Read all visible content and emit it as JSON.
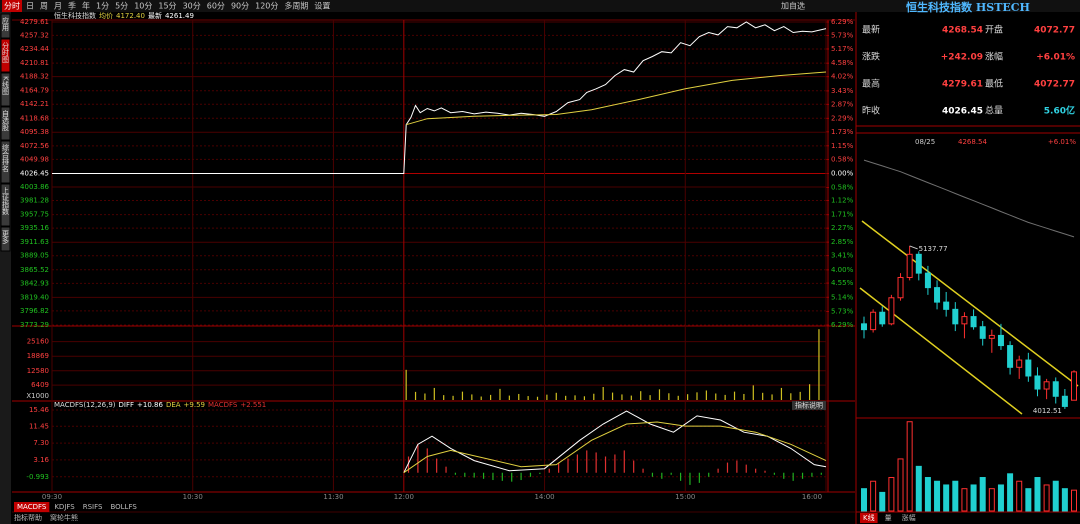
{
  "toolbar": {
    "tabs": [
      "分时",
      "日",
      "周",
      "月",
      "季",
      "年",
      "1分",
      "5分",
      "10分",
      "15分",
      "30分",
      "60分",
      "90分",
      "120分",
      "多周期",
      "设置"
    ],
    "add_watchlist": "加自选"
  },
  "sidebar": {
    "tabs": [
      "应用",
      "分时图",
      "K线图",
      "自选股",
      "综合排名",
      "上证指数",
      "更多"
    ]
  },
  "indicator_tabs": [
    "MACDFS",
    "KDJFS",
    "RSIFS",
    "BOLLFS"
  ],
  "footer_tabs": [
    "指标帮助",
    "窝轮牛熊"
  ],
  "indicator_help": "指标说明",
  "quote": {
    "title": "恒生科技指数 HSTECH",
    "rows": [
      [
        "最新",
        "4268.54",
        "开盘",
        "4072.77"
      ],
      [
        "涨跌",
        "+242.09",
        "涨幅",
        "+6.01%"
      ],
      [
        "最高",
        "4279.61",
        "最低",
        "4072.77"
      ],
      [
        "昨收",
        "4026.45",
        "总量",
        "5.60亿"
      ]
    ]
  },
  "kline_header": {
    "change": "+6.01%"
  },
  "kline_tabs": [
    "K线",
    "量",
    "涨幅"
  ],
  "chart_data": [
    {
      "type": "line",
      "title": "恒生科技指数",
      "xlim": [
        0,
        330
      ],
      "xticks": [
        {
          "value": 0,
          "label": "09:30"
        },
        {
          "value": 60,
          "label": "10:30"
        },
        {
          "value": 120,
          "label": "11:30"
        },
        {
          "value": 150,
          "label": "12:00"
        },
        {
          "value": 210,
          "label": "14:00"
        },
        {
          "value": 270,
          "label": "15:00"
        },
        {
          "value": 330,
          "label": "16:00"
        }
      ],
      "ylim": [
        3773.29,
        4279.61
      ],
      "yticks": [
        4279.61,
        4257.32,
        4234.44,
        4210.81,
        4188.32,
        4164.79,
        4142.21,
        4118.68,
        4095.38,
        4072.56,
        4049.98,
        4026.45,
        4003.86,
        3981.28,
        3957.75,
        3935.16,
        3911.63,
        3889.05,
        3865.52,
        3842.93,
        {
          "value": 3819.4,
          "label": "3819.40"
        },
        3796.82,
        3773.29
      ],
      "y2lim": [
        -6.29,
        6.29
      ],
      "y2ticks": [
        {
          "value": 6.29,
          "label": "6.29%"
        },
        {
          "value": 5.73,
          "label": "5.73%"
        },
        {
          "value": 5.17,
          "label": "5.17%"
        },
        {
          "value": 4.58,
          "label": "4.58%"
        },
        {
          "value": 4.02,
          "label": "4.02%"
        },
        {
          "value": 3.43,
          "label": "3.43%"
        },
        {
          "value": 2.87,
          "label": "2.87%"
        },
        {
          "value": 2.29,
          "label": "2.29%"
        },
        {
          "value": 1.73,
          "label": "1.73%"
        },
        {
          "value": 1.15,
          "label": "1.15%"
        },
        {
          "value": 0.58,
          "label": "0.58%"
        },
        {
          "value": 0,
          "label": "0.00%"
        },
        {
          "value": -0.58,
          "label": "0.58%"
        },
        {
          "value": -1.12,
          "label": "1.12%"
        },
        {
          "value": -1.71,
          "label": "1.71%"
        },
        {
          "value": -2.27,
          "label": "2.27%"
        },
        {
          "value": -2.85,
          "label": "2.85%"
        },
        {
          "value": -3.41,
          "label": "3.41%"
        },
        {
          "value": -4.0,
          "label": "4.00%"
        },
        {
          "value": -4.55,
          "label": "4.55%"
        },
        {
          "value": -5.14,
          "label": "5.14%"
        },
        {
          "value": -5.73,
          "label": "5.73%"
        },
        {
          "value": -6.29,
          "label": "6.29%"
        }
      ],
      "grid": true,
      "series": [
        {
          "name": "均价",
          "current": "4172.40",
          "color": "#e0d040",
          "x": [
            151,
            160,
            180,
            200,
            215,
            230,
            250,
            270,
            290,
            310,
            330
          ],
          "values": [
            4108,
            4118,
            4122,
            4124,
            4125,
            4133,
            4150,
            4168,
            4182,
            4190,
            4196
          ]
        },
        {
          "name": "最新",
          "current": "4261.49",
          "color": "#ffffff",
          "x": [
            0,
            150,
            151,
            153,
            155,
            157,
            160,
            163,
            166,
            170,
            175,
            180,
            185,
            190,
            195,
            200,
            205,
            210,
            215,
            220,
            225,
            228,
            232,
            236,
            240,
            244,
            248,
            252,
            256,
            260,
            264,
            268,
            272,
            276,
            280,
            284,
            288,
            292,
            296,
            300,
            304,
            308,
            312,
            316,
            320,
            324,
            330
          ],
          "values": [
            4026.45,
            4026.45,
            4108,
            4120,
            4140,
            4128,
            4135,
            4131,
            4136,
            4128,
            4130,
            4126,
            4129,
            4127,
            4124,
            4127,
            4125,
            4122,
            4130,
            4145,
            4150,
            4162,
            4168,
            4175,
            4190,
            4200,
            4196,
            4215,
            4222,
            4230,
            4228,
            4245,
            4240,
            4255,
            4262,
            4258,
            4272,
            4270,
            4279.61,
            4270,
            4275,
            4265,
            4272,
            4262,
            4264,
            4263,
            4268.54
          ]
        }
      ]
    },
    {
      "type": "bar",
      "unit": "X1000",
      "color": "#d0c020",
      "ylim": [
        0,
        31450
      ],
      "yticks": [
        6409,
        12580,
        18869,
        25160
      ],
      "x": [
        151,
        155,
        159,
        163,
        167,
        171,
        175,
        179,
        183,
        187,
        191,
        195,
        199,
        203,
        207,
        211,
        215,
        219,
        223,
        227,
        231,
        235,
        239,
        243,
        247,
        251,
        255,
        259,
        263,
        267,
        271,
        275,
        279,
        283,
        287,
        291,
        295,
        299,
        303,
        307,
        311,
        315,
        319,
        323,
        327
      ],
      "values": [
        13000,
        3500,
        2800,
        5200,
        2100,
        1800,
        3600,
        2400,
        1500,
        2200,
        4800,
        1900,
        2600,
        1700,
        1400,
        2300,
        3100,
        1800,
        2000,
        1600,
        2700,
        5600,
        3200,
        2400,
        1900,
        3800,
        2100,
        4600,
        2900,
        1800,
        2500,
        3300,
        4100,
        2800,
        2200,
        3600,
        2600,
        6300,
        3100,
        2400,
        5200,
        2900,
        3500,
        6800,
        30500
      ]
    },
    {
      "type": "bar",
      "title": "MACDFS(12,26,9)",
      "ylim": [
        -4.5,
        15.46
      ],
      "yticks": [
        15.46,
        11.45,
        {
          "value": 7.3,
          "label": "7.30"
        },
        3.16,
        -0.993
      ],
      "series": [
        {
          "name": "DIFF",
          "current": "+10.86",
          "type": "line",
          "color": "#ffffff",
          "x": [
            150,
            156,
            162,
            170,
            180,
            195,
            210,
            225,
            235,
            245,
            255,
            265,
            275,
            285,
            295,
            305,
            315,
            325,
            330
          ],
          "values": [
            0,
            7,
            9,
            6,
            3,
            0.5,
            1,
            8,
            12,
            15.2,
            12,
            10,
            14,
            13,
            10,
            9,
            6,
            2,
            1.5
          ]
        },
        {
          "name": "DEA",
          "current": "+9.59",
          "type": "line",
          "color": "#e0d040",
          "x": [
            150,
            160,
            170,
            185,
            200,
            215,
            230,
            245,
            258,
            270,
            285,
            300,
            315,
            330
          ],
          "values": [
            0,
            4,
            5.5,
            3.5,
            1.5,
            2,
            8,
            12,
            12.5,
            11.5,
            11.5,
            10,
            7,
            3
          ]
        },
        {
          "name": "MACDFS",
          "current": "+2.551",
          "type": "bar",
          "color": "#e03030",
          "negative_color": "#20b020",
          "x": [
            152,
            156,
            160,
            164,
            168,
            172,
            176,
            180,
            184,
            188,
            192,
            196,
            200,
            204,
            208,
            212,
            216,
            220,
            224,
            228,
            232,
            236,
            240,
            244,
            248,
            252,
            256,
            260,
            264,
            268,
            272,
            276,
            280,
            284,
            288,
            292,
            296,
            300,
            304,
            308,
            312,
            316,
            320,
            324,
            328
          ],
          "values": [
            4,
            7,
            6,
            3.5,
            1.5,
            -0.5,
            -1,
            -1.2,
            -1.5,
            -1.8,
            -2,
            -2.2,
            -1.8,
            -1,
            -0.3,
            1,
            2.5,
            3.5,
            4.5,
            5.5,
            5,
            4,
            4.5,
            5.5,
            3,
            1,
            -1,
            -1.5,
            -0.5,
            -2,
            -3,
            -2.5,
            -1,
            1,
            2.5,
            3,
            2,
            1,
            0.5,
            -0.5,
            -1.5,
            -2,
            -1.5,
            -1,
            -0.5
          ]
        }
      ]
    },
    {
      "type": "candlestick",
      "ylim": [
        3950,
        5800
      ],
      "up_color": "#ff3030",
      "down_color": "#20d0d0",
      "categories": [
        null,
        null,
        null,
        null,
        null,
        null,
        null,
        null,
        null,
        null,
        null,
        null,
        null,
        null,
        null,
        null,
        null,
        null,
        null,
        null,
        null,
        null,
        null,
        "08/25"
      ],
      "open": [
        4600,
        4560,
        4680,
        4600,
        4780,
        4920,
        5080,
        4950,
        4850,
        4750,
        4700,
        4600,
        4650,
        4580,
        4500,
        4520,
        4450,
        4300,
        4350,
        4240,
        4150,
        4200,
        4100,
        4072.77
      ],
      "high": [
        4650,
        4700,
        4720,
        4800,
        4950,
        5137.77,
        5100,
        5000,
        4900,
        4820,
        4750,
        4680,
        4700,
        4620,
        4560,
        4600,
        4480,
        4380,
        4400,
        4300,
        4220,
        4230,
        4150,
        4279.61
      ],
      "low": [
        4500,
        4540,
        4580,
        4590,
        4760,
        4900,
        4900,
        4800,
        4700,
        4650,
        4550,
        4500,
        4560,
        4450,
        4400,
        4420,
        4250,
        4220,
        4200,
        4100,
        4080,
        4050,
        4012.51,
        4072.77
      ],
      "close": [
        4560,
        4680,
        4600,
        4780,
        4920,
        5080,
        4950,
        4850,
        4750,
        4700,
        4600,
        4650,
        4580,
        4500,
        4520,
        4450,
        4300,
        4350,
        4240,
        4150,
        4200,
        4100,
        4030,
        4268.54
      ],
      "series": [
        {
          "color": "#707070",
          "values": [
            5730,
            5710,
            5690,
            5670,
            5650,
            5625,
            5600,
            5575,
            5550,
            5525,
            5500,
            5475,
            5450,
            5425,
            5400,
            5375,
            5350,
            5325,
            5300,
            5280,
            5260,
            5240,
            5220,
            5200
          ]
        }
      ]
    },
    {
      "type": "bar",
      "ylim": [
        0,
        25
      ],
      "values": [
        6,
        8,
        5,
        9,
        14,
        24,
        12,
        9,
        8,
        7,
        8,
        6,
        7,
        9,
        6,
        7,
        10,
        8,
        6,
        9,
        7,
        8,
        6,
        5.6
      ]
    }
  ]
}
